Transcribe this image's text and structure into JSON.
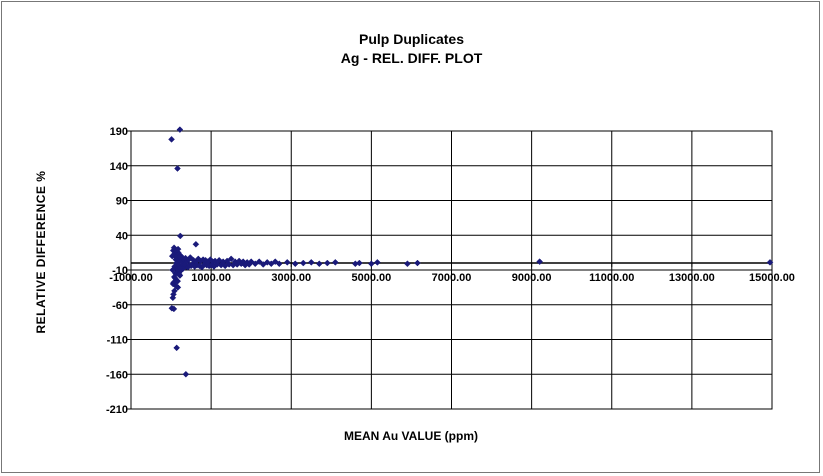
{
  "chart_data": {
    "type": "scatter",
    "title": "Pulp Duplicates",
    "subtitle": "Ag -  REL. DIFF. PLOT",
    "xlabel": "MEAN  Au VALUE (ppm)",
    "ylabel": "RELATIVE  DIFFERENCE  %",
    "xlim": [
      -1000,
      15000
    ],
    "ylim": [
      -210,
      190
    ],
    "x_ticks": [
      -1000,
      1000,
      3000,
      5000,
      7000,
      9000,
      11000,
      13000,
      15000
    ],
    "x_tick_labels": [
      "-1000.00",
      "1000.00",
      "3000.00",
      "5000.00",
      "7000.00",
      "9000.00",
      "11000.00",
      "13000.00",
      "15000.00"
    ],
    "y_ticks": [
      190,
      140,
      90,
      40,
      -10,
      -60,
      -110,
      -160,
      -210
    ],
    "y_tick_labels": [
      "190",
      "140",
      "90",
      "40",
      "-10",
      "-60",
      "-110",
      "-160",
      "-210"
    ],
    "grid": true,
    "marker_color": "#1a1a7a",
    "series": [
      {
        "points": [
          [
            12,
            178
          ],
          [
            220,
            192
          ],
          [
            160,
            136
          ],
          [
            230,
            39
          ],
          [
            620,
            27
          ],
          [
            140,
            -122
          ],
          [
            370,
            -160
          ],
          [
            20,
            -65
          ],
          [
            70,
            -66
          ],
          [
            40,
            -10
          ],
          [
            50,
            -30
          ],
          [
            60,
            -45
          ],
          [
            80,
            -20
          ],
          [
            90,
            -5
          ],
          [
            100,
            10
          ],
          [
            110,
            -15
          ],
          [
            120,
            5
          ],
          [
            130,
            -25
          ],
          [
            140,
            0
          ],
          [
            150,
            12
          ],
          [
            160,
            -8
          ],
          [
            170,
            -35
          ],
          [
            180,
            15
          ],
          [
            190,
            -3
          ],
          [
            200,
            -12
          ],
          [
            210,
            8
          ],
          [
            220,
            -18
          ],
          [
            230,
            3
          ],
          [
            240,
            -6
          ],
          [
            250,
            10
          ],
          [
            260,
            -10
          ],
          [
            270,
            2
          ],
          [
            280,
            -4
          ],
          [
            290,
            6
          ],
          [
            300,
            -8
          ],
          [
            320,
            4
          ],
          [
            340,
            -2
          ],
          [
            360,
            7
          ],
          [
            380,
            -5
          ],
          [
            400,
            3
          ],
          [
            420,
            -6
          ],
          [
            440,
            5
          ],
          [
            460,
            -3
          ],
          [
            480,
            8
          ],
          [
            500,
            -4
          ],
          [
            30,
            10
          ],
          [
            45,
            -50
          ],
          [
            55,
            18
          ],
          [
            65,
            -28
          ],
          [
            75,
            22
          ],
          [
            85,
            -40
          ],
          [
            95,
            14
          ],
          [
            105,
            -22
          ],
          [
            115,
            19
          ],
          [
            125,
            -33
          ],
          [
            135,
            16
          ],
          [
            145,
            -14
          ],
          [
            155,
            11
          ],
          [
            165,
            -26
          ],
          [
            175,
            20
          ],
          [
            185,
            -9
          ],
          [
            195,
            13
          ],
          [
            205,
            -16
          ],
          [
            215,
            9
          ],
          [
            225,
            -7
          ],
          [
            530,
            -2
          ],
          [
            560,
            4
          ],
          [
            590,
            -5
          ],
          [
            620,
            2
          ],
          [
            650,
            -3
          ],
          [
            680,
            6
          ],
          [
            710,
            -4
          ],
          [
            740,
            3
          ],
          [
            770,
            -6
          ],
          [
            800,
            5
          ],
          [
            830,
            -2
          ],
          [
            860,
            4
          ],
          [
            890,
            -3
          ],
          [
            920,
            2
          ],
          [
            950,
            -4
          ],
          [
            980,
            5
          ],
          [
            1010,
            -3
          ],
          [
            1040,
            2
          ],
          [
            1070,
            -5
          ],
          [
            1100,
            3
          ],
          [
            1150,
            -2
          ],
          [
            1200,
            4
          ],
          [
            1250,
            -3
          ],
          [
            1300,
            2
          ],
          [
            1350,
            -4
          ],
          [
            1400,
            3
          ],
          [
            1450,
            -2
          ],
          [
            1500,
            6
          ],
          [
            1550,
            -3
          ],
          [
            1600,
            2
          ],
          [
            1650,
            -2
          ],
          [
            1700,
            3
          ],
          [
            1750,
            -1
          ],
          [
            1800,
            2
          ],
          [
            1850,
            -3
          ],
          [
            1900,
            1
          ],
          [
            1950,
            -2
          ],
          [
            2000,
            2
          ],
          [
            2100,
            -1
          ],
          [
            2200,
            2
          ],
          [
            2300,
            -2
          ],
          [
            2400,
            1
          ],
          [
            2500,
            -1
          ],
          [
            2600,
            2
          ],
          [
            2700,
            -1
          ],
          [
            2900,
            1
          ],
          [
            3100,
            -1
          ],
          [
            3300,
            0
          ],
          [
            3500,
            1
          ],
          [
            3700,
            -1
          ],
          [
            3900,
            0
          ],
          [
            4100,
            1
          ],
          [
            4600,
            -1
          ],
          [
            4700,
            0
          ],
          [
            5000,
            -1
          ],
          [
            5150,
            1
          ],
          [
            5900,
            -1
          ],
          [
            6150,
            0
          ],
          [
            9200,
            2
          ],
          [
            14950,
            1
          ]
        ]
      }
    ]
  }
}
